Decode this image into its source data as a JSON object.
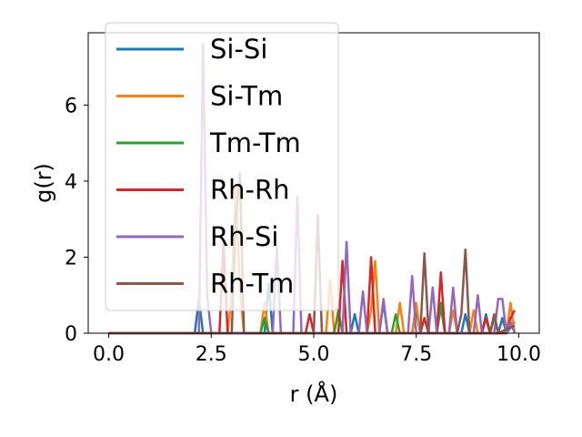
{
  "chart_data": {
    "type": "line",
    "xlabel": "r (Å)",
    "ylabel": "g(r)",
    "xlim": [
      -0.5,
      10.5
    ],
    "ylim": [
      0,
      7.9
    ],
    "xticks": [
      0.0,
      2.5,
      5.0,
      7.5,
      10.0
    ],
    "xtick_labels": [
      "0.0",
      "2.5",
      "5.0",
      "7.5",
      "10.0"
    ],
    "yticks": [
      0,
      2,
      4,
      6
    ],
    "ytick_labels": [
      "0",
      "2",
      "4",
      "6"
    ],
    "grid": false,
    "legend_position": "top-left",
    "series": [
      {
        "name": "Si-Si",
        "color": "#1f77b4",
        "x": [
          0.0,
          2.1,
          2.2,
          2.3,
          2.4,
          3.8,
          3.9,
          4.0,
          5.9,
          6.0,
          6.1,
          6.2,
          6.6,
          6.7,
          6.8,
          6.9,
          7.4,
          7.5,
          7.6,
          8.0,
          8.1,
          8.2,
          8.6,
          8.7,
          8.8,
          9.1,
          9.2,
          9.3,
          9.5,
          9.6,
          9.7,
          9.9
        ],
        "y": [
          0,
          0,
          0.9,
          0,
          0,
          0,
          1.3,
          0,
          0,
          0.5,
          0,
          0,
          0,
          0.8,
          0,
          0,
          0,
          0.6,
          0,
          0,
          0.7,
          0,
          0,
          0.5,
          0,
          0,
          0.5,
          0,
          0,
          0.4,
          0,
          0.3
        ]
      },
      {
        "name": "Si-Tm",
        "color": "#ff7f0e",
        "x": [
          0.0,
          2.9,
          3.0,
          3.1,
          3.2,
          3.3,
          3.7,
          3.8,
          3.9,
          5.3,
          5.4,
          5.5,
          6.3,
          6.4,
          6.5,
          6.6,
          7.0,
          7.1,
          7.2,
          7.4,
          7.5,
          7.6,
          8.3,
          8.4,
          8.5,
          8.8,
          8.9,
          9.0,
          9.7,
          9.8,
          9.9
        ],
        "y": [
          0,
          0,
          1.0,
          3.9,
          1.2,
          0,
          0,
          0.8,
          0,
          0,
          1.4,
          0,
          0,
          0.6,
          1.9,
          0,
          0,
          0.8,
          0,
          0,
          0.8,
          0,
          0,
          0.6,
          0,
          0,
          0.6,
          0,
          0,
          0.8,
          0
        ]
      },
      {
        "name": "Tm-Tm",
        "color": "#2ca02c",
        "x": [
          0.0,
          3.7,
          3.8,
          3.9,
          5.5,
          5.6,
          5.7,
          6.9,
          7.0,
          7.1,
          8.0,
          8.1,
          8.2,
          9.3,
          9.4,
          9.5,
          9.9
        ],
        "y": [
          0,
          0,
          0.4,
          0,
          0,
          0.6,
          0,
          0,
          0.5,
          0,
          0,
          0.8,
          0,
          0,
          0.4,
          0,
          0.2
        ]
      },
      {
        "name": "Rh-Rh",
        "color": "#d62728",
        "x": [
          0.0,
          2.7,
          2.8,
          2.9,
          4.8,
          4.9,
          5.0,
          5.6,
          5.7,
          5.8,
          6.3,
          6.4,
          6.5,
          7.6,
          7.7,
          7.8,
          8.0,
          8.1,
          8.2,
          9.1,
          9.2,
          9.3,
          9.7,
          9.8,
          9.9
        ],
        "y": [
          0,
          0,
          2.4,
          0,
          0,
          0.5,
          0,
          0,
          1.9,
          0,
          0,
          2.0,
          0,
          0,
          0.4,
          0,
          0,
          1.6,
          0,
          0,
          0.4,
          0,
          0,
          0.4,
          0.6
        ]
      },
      {
        "name": "Rh-Si",
        "color": "#9467bd",
        "x": [
          0.0,
          2.2,
          2.3,
          2.4,
          2.5,
          4.0,
          4.1,
          4.2,
          4.5,
          4.6,
          4.7,
          5.7,
          5.8,
          5.9,
          6.1,
          6.2,
          6.3,
          6.6,
          6.7,
          6.8,
          7.3,
          7.4,
          7.5,
          7.8,
          7.9,
          8.0,
          8.3,
          8.4,
          8.5,
          8.9,
          9.0,
          9.1,
          9.4,
          9.5,
          9.6,
          9.7,
          9.8,
          9.9
        ],
        "y": [
          0,
          0,
          7.6,
          1.0,
          0,
          0,
          2.3,
          0,
          0,
          3.6,
          0,
          0,
          2.4,
          0,
          0,
          1.1,
          0,
          0,
          0.9,
          0,
          0,
          1.5,
          0,
          0,
          1.2,
          0,
          0,
          1.2,
          0,
          0,
          1.0,
          0,
          0,
          0.9,
          0.9,
          0,
          0.3,
          0
        ]
      },
      {
        "name": "Rh-Tm",
        "color": "#8c564b",
        "x": [
          0.0,
          3.0,
          3.1,
          3.2,
          3.3,
          5.0,
          5.1,
          5.2,
          7.6,
          7.7,
          7.8,
          8.5,
          8.6,
          8.7,
          8.8,
          9.3,
          9.4,
          9.5,
          9.9
        ],
        "y": [
          0,
          0,
          3.0,
          4.2,
          0,
          0,
          3.1,
          0,
          0,
          2.1,
          0,
          0,
          0.5,
          2.2,
          0,
          0,
          0.5,
          0,
          0.2
        ]
      }
    ]
  }
}
